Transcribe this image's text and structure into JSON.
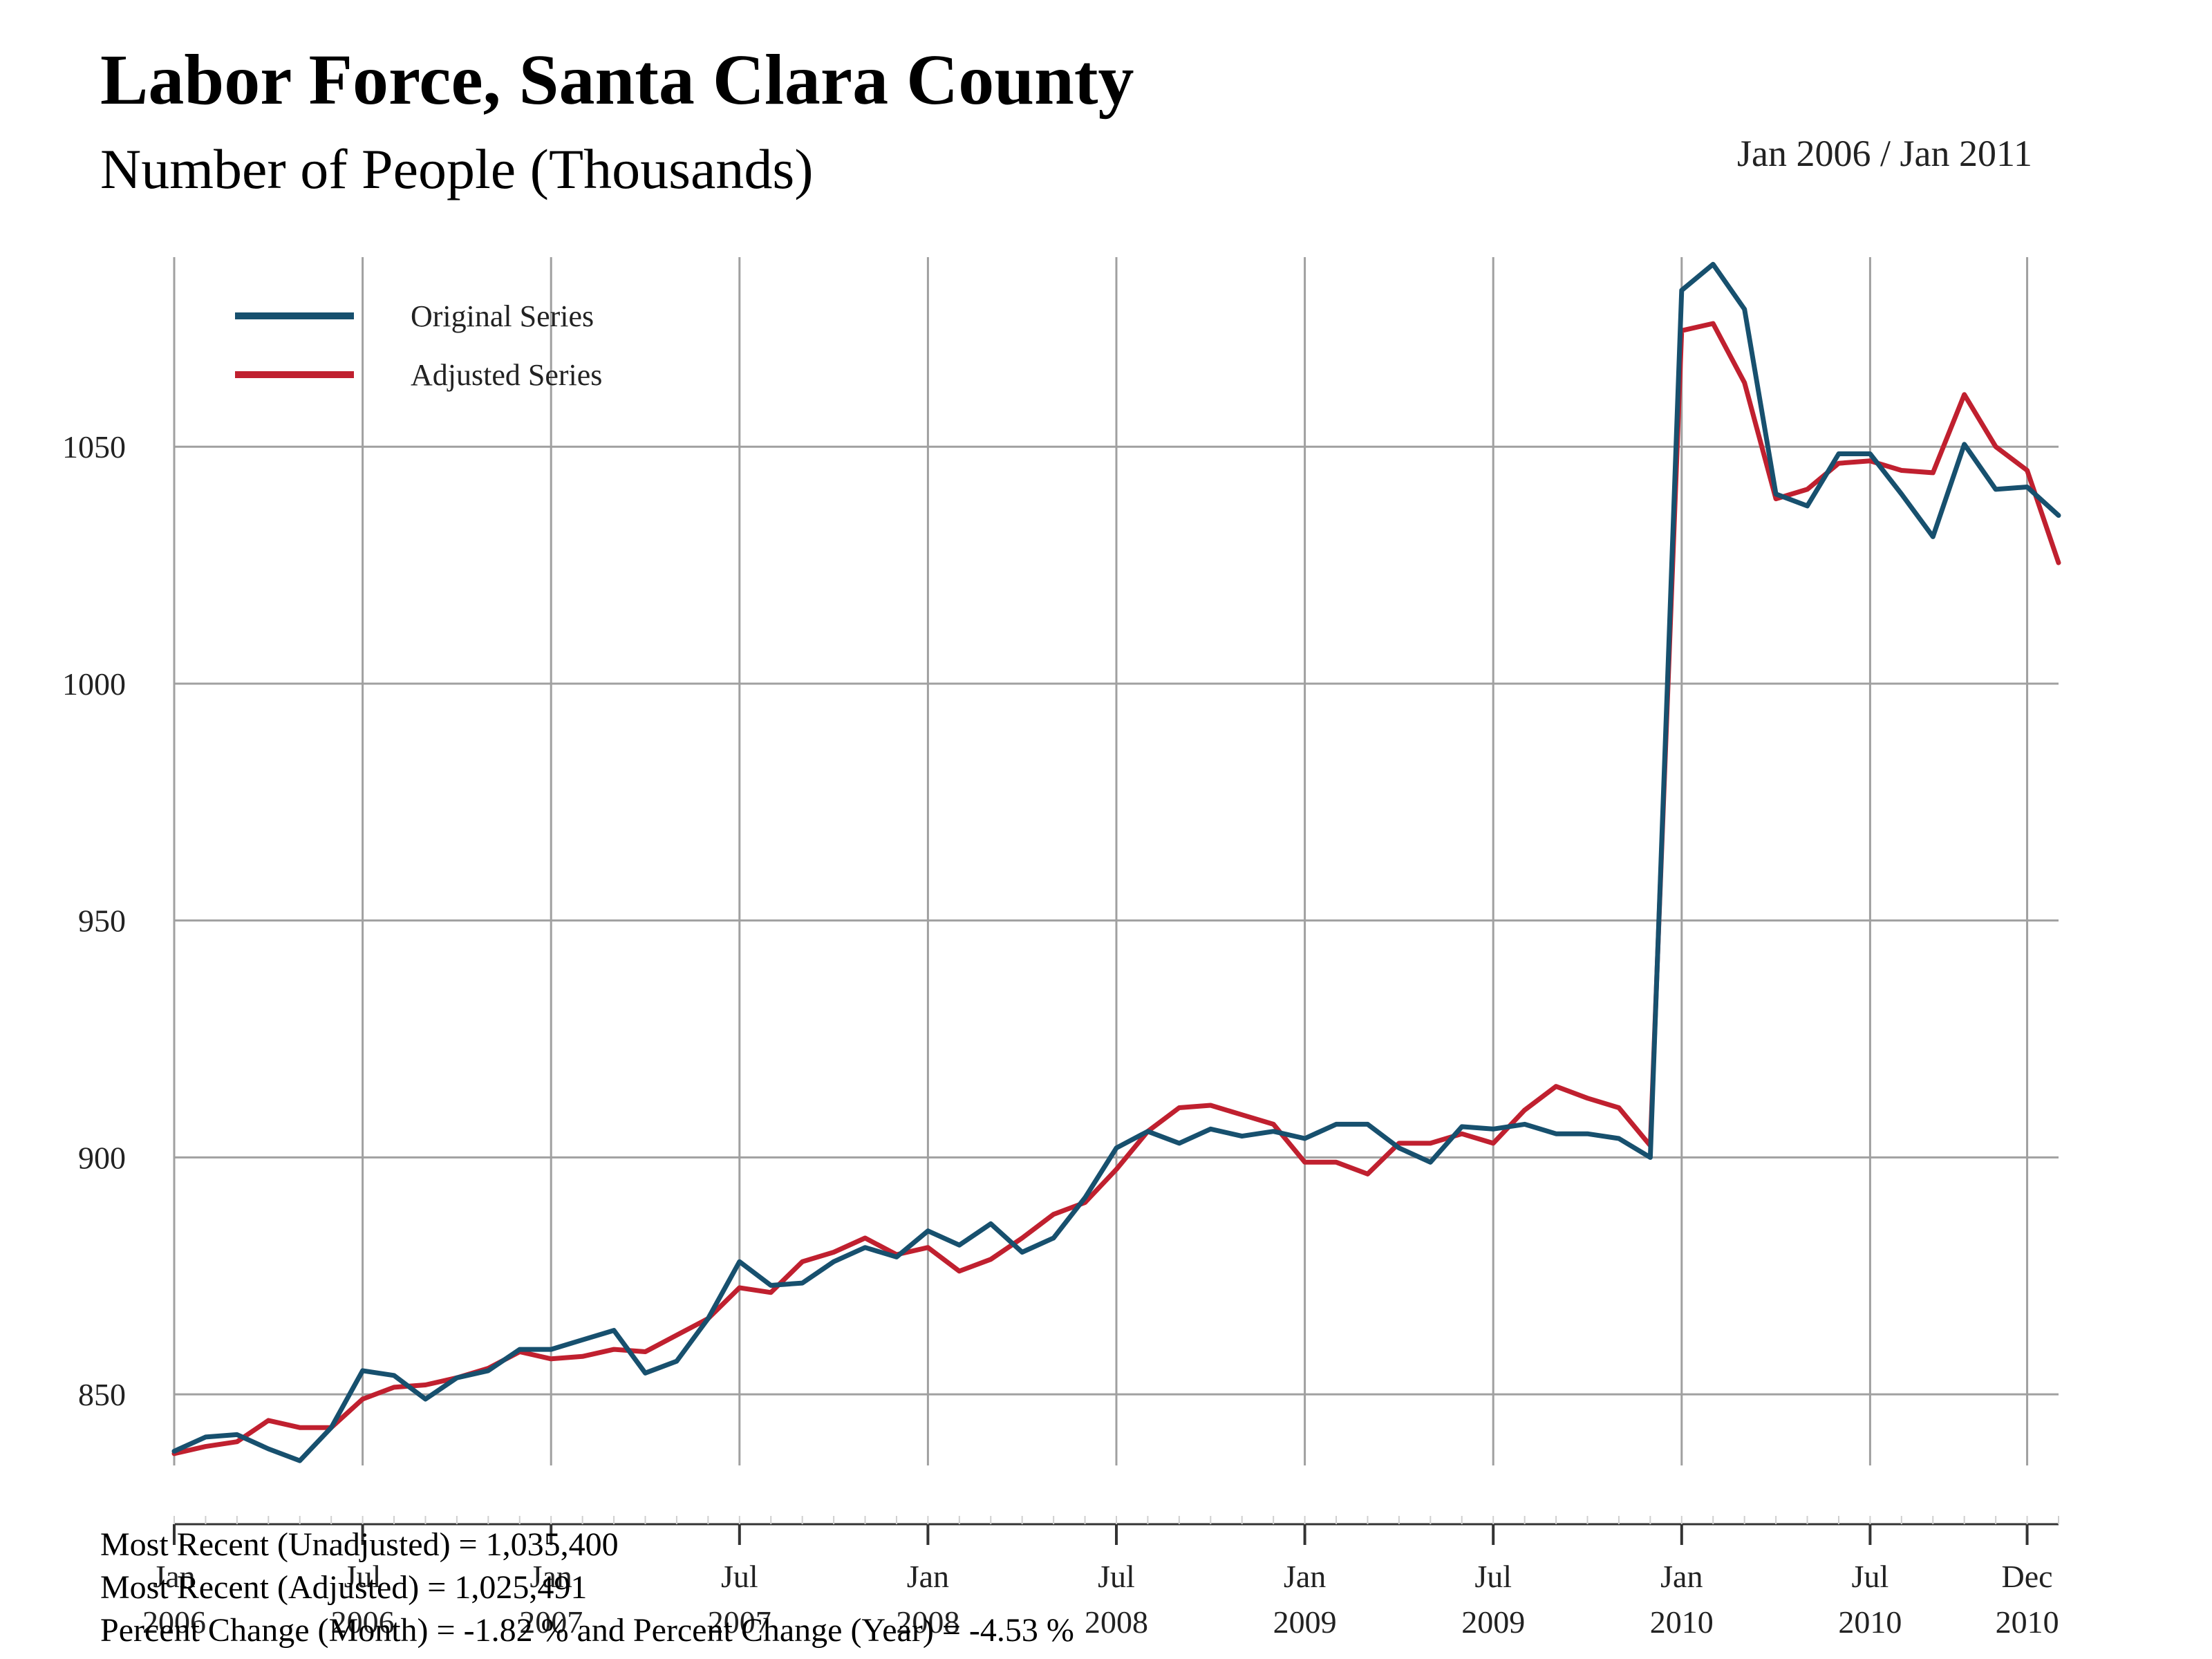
{
  "title": "Labor Force, Santa Clara County",
  "subtitle": "Number of People (Thousands)",
  "date_range": "Jan 2006 / Jan 2011",
  "legend": {
    "original": "Original Series",
    "adjusted": "Adjusted Series"
  },
  "colors": {
    "original": "#17506e",
    "adjusted": "#c0202f",
    "grid": "#a0a0a0"
  },
  "footer": {
    "line1": "Most Recent (Unadjusted) = 1,035,400",
    "line2": "Most Recent (Adjusted) = 1,025,491",
    "line3": "Percent Change (Month) = -1.82 %  and  Percent Change (Year) = -4.53 %"
  },
  "chart_data": {
    "type": "line",
    "x_start": "2006-01",
    "x_end": "2011-01",
    "ylim": [
      835,
      1090
    ],
    "y_ticks": [
      850,
      900,
      950,
      1000,
      1050
    ],
    "x_ticks": [
      {
        "month": "Jan",
        "year": "2006",
        "index": 0
      },
      {
        "month": "Jul",
        "year": "2006",
        "index": 6
      },
      {
        "month": "Jan",
        "year": "2007",
        "index": 12
      },
      {
        "month": "Jul",
        "year": "2007",
        "index": 18
      },
      {
        "month": "Jan",
        "year": "2008",
        "index": 24
      },
      {
        "month": "Jul",
        "year": "2008",
        "index": 30
      },
      {
        "month": "Jan",
        "year": "2009",
        "index": 36
      },
      {
        "month": "Jul",
        "year": "2009",
        "index": 42
      },
      {
        "month": "Jan",
        "year": "2010",
        "index": 48
      },
      {
        "month": "Jul",
        "year": "2010",
        "index": 54
      },
      {
        "month": "Dec",
        "year": "2010",
        "index": 59
      }
    ],
    "series": [
      {
        "name": "Original Series",
        "values": [
          838,
          841,
          841.5,
          838.5,
          836,
          843,
          855,
          854,
          849,
          853.5,
          855,
          859.5,
          859.5,
          861.5,
          863.5,
          854.5,
          857,
          866,
          878,
          873,
          873.5,
          878,
          881,
          879,
          884.5,
          881.5,
          886,
          880,
          883,
          891.5,
          902,
          905.5,
          903,
          906,
          904.5,
          905.5,
          904,
          907,
          907,
          902,
          899,
          906.5,
          906,
          907,
          905,
          905,
          904,
          900,
          1083,
          1088.5,
          1079,
          1040,
          1037.5,
          1048.5,
          1048.5,
          1040,
          1031,
          1050.5,
          1041,
          1041.5,
          1035.5
        ]
      },
      {
        "name": "Adjusted Series",
        "values": [
          837.5,
          839,
          840,
          844.5,
          843,
          843,
          849,
          851.5,
          852,
          853.5,
          855.5,
          859,
          857.5,
          858,
          859.5,
          859,
          862.5,
          866,
          872.5,
          871.5,
          878,
          880,
          883,
          879.5,
          881,
          876,
          878.5,
          883,
          888,
          890.5,
          897.5,
          905.5,
          910.5,
          911,
          909,
          907,
          899,
          899,
          896.5,
          903,
          903,
          905,
          903,
          910,
          915,
          912.5,
          910.5,
          902.5,
          1074.5,
          1076,
          1063.5,
          1039,
          1041,
          1046.5,
          1047,
          1045,
          1044.5,
          1061,
          1050,
          1045,
          1025.5
        ]
      }
    ]
  }
}
